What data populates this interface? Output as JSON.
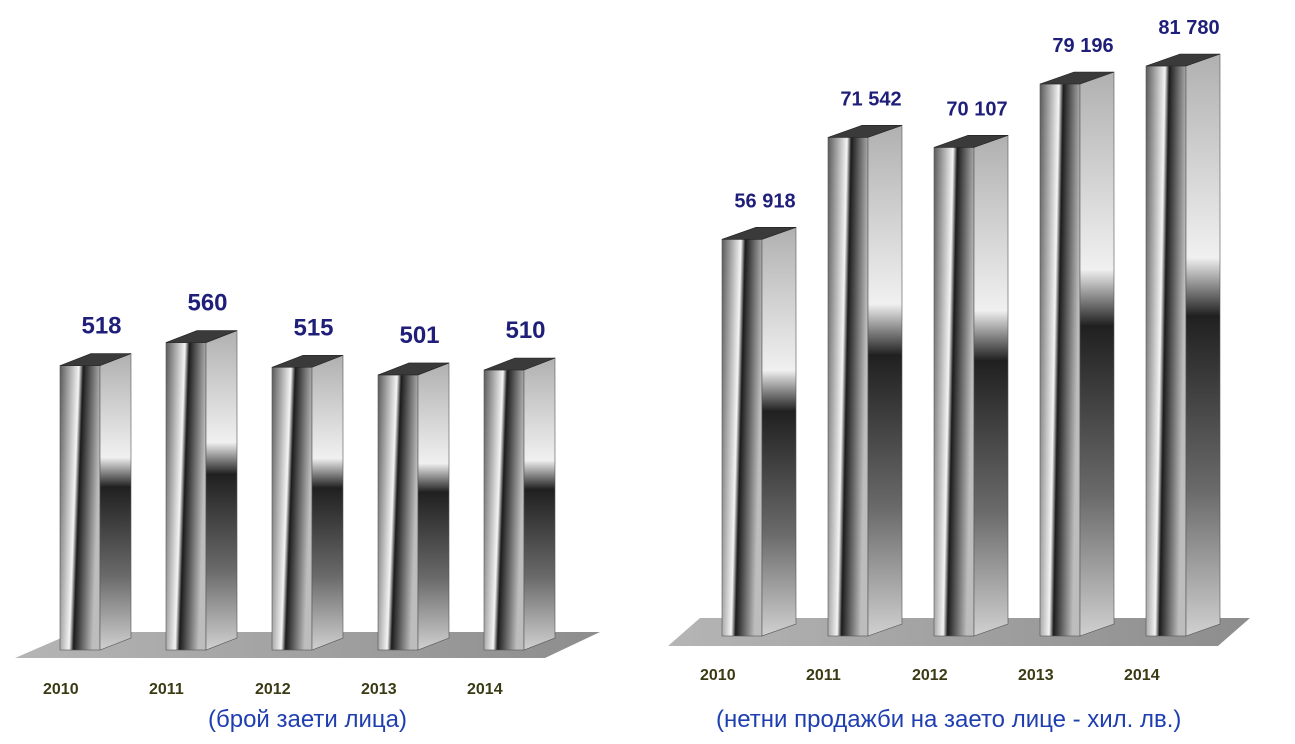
{
  "chart_data": [
    {
      "type": "bar",
      "categories": [
        "2010",
        "2011",
        "2012",
        "2013",
        "2014"
      ],
      "values": [
        518,
        560,
        515,
        501,
        510
      ],
      "value_labels": [
        "518",
        "560",
        "515",
        "501",
        "510"
      ],
      "caption": "(брой заети лица)",
      "style": "3d-cylinder-bars-grayscale",
      "value_label_color": "#1f1f7a",
      "category_label_color": "#3a3a14"
    },
    {
      "type": "bar",
      "categories": [
        "2010",
        "2011",
        "2012",
        "2013",
        "2014"
      ],
      "values": [
        56918,
        71542,
        70107,
        79196,
        81780
      ],
      "value_labels": [
        "56 918",
        "71 542",
        "70 107",
        "79 196",
        "81 780"
      ],
      "caption": "(нетни продажби на заето лице - хил. лв.)",
      "style": "3d-cylinder-bars-grayscale",
      "value_label_color": "#1f1f7a",
      "category_label_color": "#3a3a14"
    }
  ],
  "colors": {
    "caption": "#1f3fb0",
    "floor": "#9a9a9a"
  }
}
